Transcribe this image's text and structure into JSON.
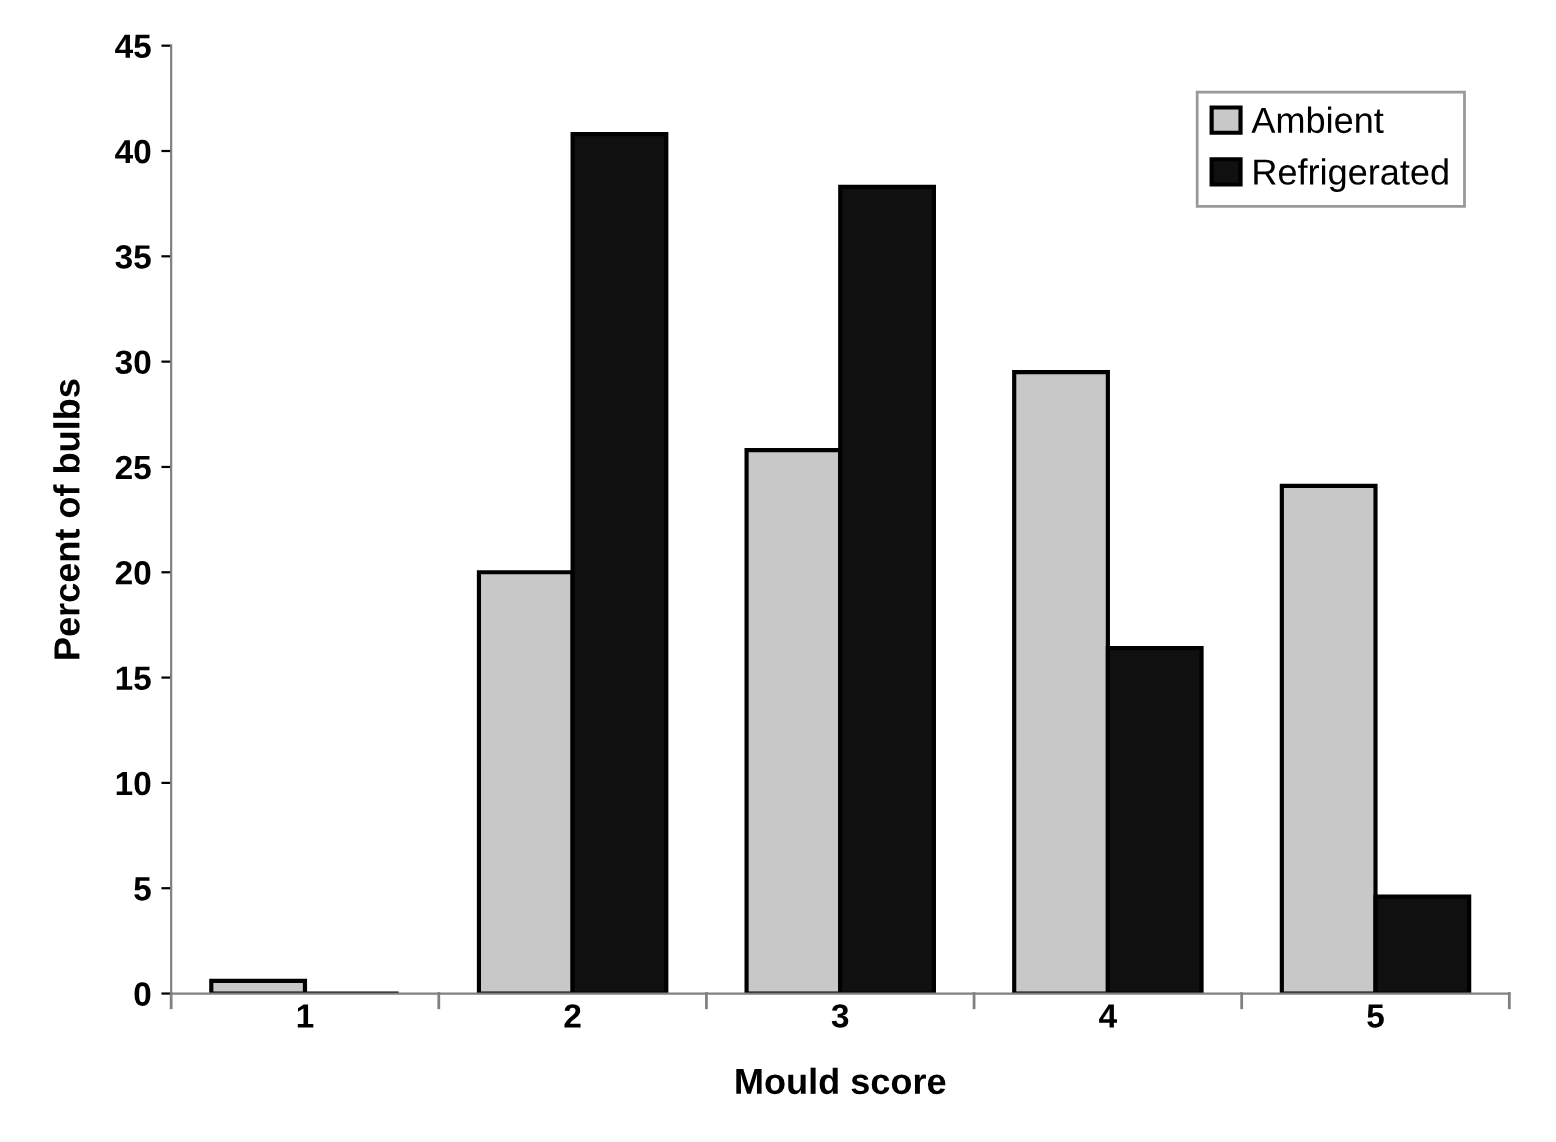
{
  "chart_data": {
    "type": "bar",
    "xlabel": "Mould score",
    "ylabel": "Percent of bulbs",
    "categories": [
      "1",
      "2",
      "3",
      "4",
      "5"
    ],
    "series": [
      {
        "name": "Ambient",
        "color": "#c8c8c8",
        "values": [
          0.6,
          20,
          25.8,
          29.5,
          24.1
        ]
      },
      {
        "name": "Refrigerated",
        "color": "#101010",
        "values": [
          0,
          40.8,
          38.3,
          16.4,
          4.6
        ]
      }
    ],
    "ylim": [
      0,
      45
    ],
    "yticks": [
      0,
      5,
      10,
      15,
      20,
      25,
      30,
      35,
      40,
      45
    ],
    "grid": false,
    "legend": "top right"
  }
}
